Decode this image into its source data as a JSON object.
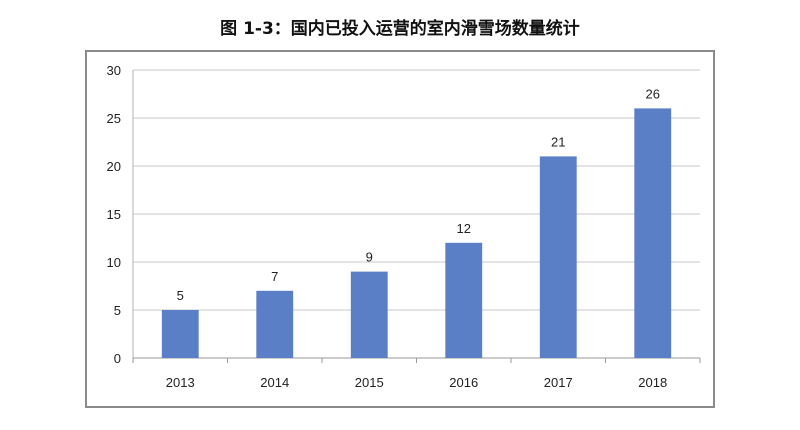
{
  "title": "图 1-3：国内已投入运营的室内滑雪场数量统计",
  "chart_data": {
    "type": "bar",
    "title": "图 1-3：国内已投入运营的室内滑雪场数量统计",
    "categories": [
      "2013",
      "2014",
      "2015",
      "2016",
      "2017",
      "2018"
    ],
    "values": [
      5,
      7,
      9,
      12,
      21,
      26
    ],
    "xlabel": "",
    "ylabel": "",
    "ylim": [
      0,
      30
    ],
    "yticks": [
      0,
      5,
      10,
      15,
      20,
      25,
      30
    ],
    "grid": true,
    "legend": "none",
    "bar_color": "#5b7fc6",
    "data_labels": true
  }
}
